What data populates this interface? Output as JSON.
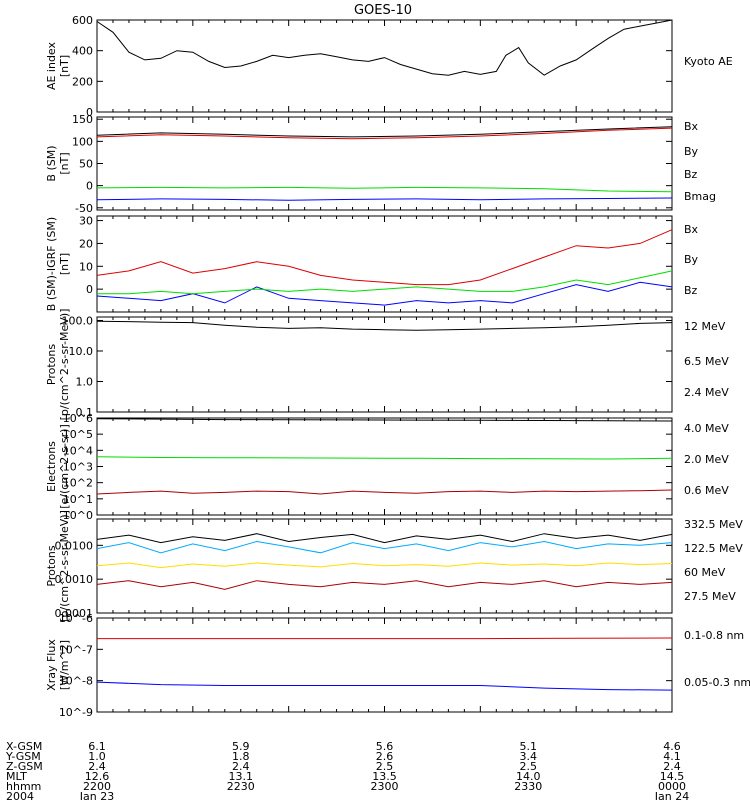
{
  "title": "GOES-10",
  "colors": {
    "black": "#000000",
    "blue": "#0000ff",
    "green": "#00dd00",
    "red": "#dd0000",
    "darkred": "#aa0000",
    "yellow": "#ffdd00",
    "cyan": "#00aaff"
  },
  "chart_data": [
    {
      "type": "line",
      "ylabel": [
        "AE index",
        "[nT]"
      ],
      "scale": "linear",
      "ylim": [
        0,
        600
      ],
      "yticks": [
        {
          "v": 0,
          "l": "0"
        },
        {
          "v": 200,
          "l": "200"
        },
        {
          "v": 400,
          "l": "400"
        },
        {
          "v": 600,
          "l": "600"
        }
      ],
      "series": [
        {
          "name": "Kyoto AE",
          "color": "#000000",
          "x": [
            0,
            5,
            10,
            15,
            20,
            25,
            30,
            35,
            40,
            45,
            50,
            55,
            60,
            65,
            70,
            75,
            80,
            85,
            90,
            95,
            100,
            105,
            110,
            115,
            120,
            125,
            128,
            132,
            135,
            140,
            145,
            150,
            155,
            160,
            165,
            170,
            175,
            180
          ],
          "y": [
            590,
            520,
            390,
            340,
            350,
            400,
            390,
            330,
            290,
            300,
            330,
            370,
            355,
            370,
            380,
            360,
            340,
            330,
            355,
            310,
            280,
            250,
            240,
            265,
            245,
            265,
            370,
            420,
            320,
            240,
            300,
            340,
            410,
            480,
            540,
            560,
            580,
            600
          ]
        }
      ]
    },
    {
      "type": "line",
      "ylabel": [
        "B (SM)",
        "[nT]"
      ],
      "scale": "linear",
      "ylim": [
        -55,
        155
      ],
      "yticks": [
        {
          "v": -50,
          "l": "-50"
        },
        {
          "v": 0,
          "l": "0"
        },
        {
          "v": 50,
          "l": "50"
        },
        {
          "v": 100,
          "l": "100"
        },
        {
          "v": 150,
          "l": "150"
        }
      ],
      "series": [
        {
          "name": "Bx",
          "color": "#0000ff",
          "x": [
            0,
            20,
            40,
            60,
            80,
            100,
            120,
            140,
            160,
            180
          ],
          "y": [
            -32,
            -30,
            -31,
            -33,
            -31,
            -30,
            -32,
            -30,
            -29,
            -28
          ]
        },
        {
          "name": "By",
          "color": "#00dd00",
          "x": [
            0,
            20,
            40,
            60,
            80,
            100,
            120,
            140,
            160,
            180
          ],
          "y": [
            -5,
            -4,
            -5,
            -4,
            -6,
            -4,
            -5,
            -7,
            -12,
            -14
          ]
        },
        {
          "name": "Bz",
          "color": "#dd0000",
          "x": [
            0,
            20,
            40,
            60,
            80,
            100,
            120,
            140,
            160,
            180
          ],
          "y": [
            110,
            115,
            112,
            108,
            106,
            108,
            112,
            118,
            125,
            130
          ]
        },
        {
          "name": "Bmag",
          "color": "#000000",
          "x": [
            0,
            20,
            40,
            60,
            80,
            100,
            120,
            140,
            160,
            180
          ],
          "y": [
            114,
            119,
            116,
            112,
            110,
            112,
            116,
            122,
            128,
            133
          ]
        }
      ]
    },
    {
      "type": "line",
      "ylabel": [
        "B (SM)-IGRF (SM)",
        "[nT]"
      ],
      "scale": "linear",
      "ylim": [
        -10,
        32
      ],
      "yticks": [
        {
          "v": 0,
          "l": "0"
        },
        {
          "v": 10,
          "l": "10"
        },
        {
          "v": 20,
          "l": "20"
        },
        {
          "v": 30,
          "l": "30"
        }
      ],
      "series": [
        {
          "name": "Bx",
          "color": "#0000ff",
          "x": [
            0,
            10,
            20,
            30,
            40,
            50,
            60,
            70,
            80,
            90,
            100,
            110,
            120,
            130,
            140,
            150,
            160,
            170,
            180
          ],
          "y": [
            -3,
            -4,
            -5,
            -2,
            -6,
            1,
            -4,
            -5,
            -6,
            -7,
            -5,
            -6,
            -5,
            -6,
            -2,
            2,
            -1,
            3,
            1
          ]
        },
        {
          "name": "By",
          "color": "#00dd00",
          "x": [
            0,
            10,
            20,
            30,
            40,
            50,
            60,
            70,
            80,
            90,
            100,
            110,
            120,
            130,
            140,
            150,
            160,
            170,
            180
          ],
          "y": [
            -2,
            -2,
            -1,
            -2,
            -1,
            0,
            -1,
            0,
            -1,
            0,
            1,
            0,
            -1,
            -1,
            1,
            4,
            2,
            5,
            8
          ]
        },
        {
          "name": "Bz",
          "color": "#dd0000",
          "x": [
            0,
            10,
            20,
            30,
            40,
            50,
            60,
            70,
            80,
            90,
            100,
            110,
            120,
            130,
            140,
            150,
            160,
            170,
            180
          ],
          "y": [
            6,
            8,
            12,
            7,
            9,
            12,
            10,
            6,
            4,
            3,
            2,
            2,
            4,
            9,
            14,
            19,
            18,
            20,
            26
          ]
        }
      ]
    },
    {
      "type": "line",
      "ylabel": [
        "Protons",
        "[p/(cm^2-s-sr-MeV)]"
      ],
      "scale": "log",
      "ylim": [
        0.1,
        130
      ],
      "yticks": [
        {
          "v": 0.1,
          "l": "0.1"
        },
        {
          "v": 1,
          "l": "1.0"
        },
        {
          "v": 10,
          "l": "10.0"
        },
        {
          "v": 100,
          "l": "100.0"
        }
      ],
      "series": [
        {
          "name": "12 MeV",
          "color": "#dd0000",
          "x": [],
          "y": []
        },
        {
          "name": "6.5 MeV",
          "color": "#00dd00",
          "x": [],
          "y": []
        },
        {
          "name": "2.4 MeV",
          "color": "#000000",
          "x": [
            0,
            10,
            20,
            30,
            40,
            50,
            60,
            70,
            80,
            90,
            100,
            110,
            120,
            130,
            140,
            150,
            160,
            170,
            180
          ],
          "y": [
            95,
            92,
            88,
            85,
            70,
            60,
            55,
            58,
            52,
            50,
            48,
            50,
            52,
            55,
            58,
            62,
            70,
            80,
            85
          ]
        }
      ]
    },
    {
      "type": "line",
      "ylabel": [
        "Electrons",
        "[e/(cm^2-s-sr)]"
      ],
      "scale": "log",
      "ylim": [
        1,
        1000000
      ],
      "yticks": [
        {
          "v": 1,
          "l": "10^0"
        },
        {
          "v": 10,
          "l": "10^1"
        },
        {
          "v": 100,
          "l": "10^2"
        },
        {
          "v": 1000,
          "l": "10^3"
        },
        {
          "v": 10000,
          "l": "10^4"
        },
        {
          "v": 100000,
          "l": "10^5"
        },
        {
          "v": 1000000,
          "l": "10^6"
        }
      ],
      "series": [
        {
          "name": "4.0 MeV",
          "color": "#aa0000",
          "x": [
            0,
            10,
            20,
            30,
            40,
            50,
            60,
            70,
            80,
            90,
            100,
            110,
            120,
            130,
            140,
            150,
            160,
            170,
            180
          ],
          "y": [
            20,
            25,
            30,
            22,
            25,
            30,
            28,
            20,
            30,
            25,
            22,
            28,
            30,
            25,
            30,
            28,
            30,
            32,
            35
          ]
        },
        {
          "name": "2.0 MeV",
          "color": "#00dd00",
          "x": [
            0,
            20,
            40,
            60,
            80,
            100,
            120,
            140,
            160,
            180
          ],
          "y": [
            4000,
            3600,
            3500,
            3400,
            3300,
            3200,
            3100,
            3000,
            2900,
            3200
          ]
        },
        {
          "name": "0.6 MeV",
          "color": "#000000",
          "x": [
            0,
            20,
            40,
            60,
            80,
            100,
            120,
            140,
            160,
            180
          ],
          "y": [
            900000,
            850000,
            800000,
            780000,
            760000,
            740000,
            720000,
            700000,
            680000,
            650000
          ]
        }
      ]
    },
    {
      "type": "line",
      "ylabel": [
        "Protons",
        "[p/(cm^2-s-sr-MeV)]"
      ],
      "scale": "log",
      "ylim": [
        0.0001,
        0.06
      ],
      "yticks": [
        {
          "v": 0.0001,
          "l": "0.0001"
        },
        {
          "v": 0.001,
          "l": "0.0010"
        },
        {
          "v": 0.01,
          "l": "0.0100"
        }
      ],
      "series": [
        {
          "name": "332.5 MeV",
          "color": "#aa0000",
          "x": [
            0,
            10,
            20,
            30,
            40,
            50,
            60,
            70,
            80,
            90,
            100,
            110,
            120,
            130,
            140,
            150,
            160,
            170,
            180
          ],
          "y": [
            0.0007,
            0.0009,
            0.0006,
            0.0008,
            0.0005,
            0.0009,
            0.0007,
            0.0006,
            0.0008,
            0.0007,
            0.0009,
            0.0006,
            0.0008,
            0.0007,
            0.0009,
            0.0006,
            0.0008,
            0.0007,
            0.0008
          ]
        },
        {
          "name": "122.5 MeV",
          "color": "#ffdd00",
          "x": [
            0,
            10,
            20,
            30,
            40,
            50,
            60,
            70,
            80,
            90,
            100,
            110,
            120,
            130,
            140,
            150,
            160,
            170,
            180
          ],
          "y": [
            0.0025,
            0.003,
            0.0022,
            0.0028,
            0.0024,
            0.003,
            0.0026,
            0.0023,
            0.0029,
            0.0025,
            0.0027,
            0.0024,
            0.003,
            0.0026,
            0.0028,
            0.0025,
            0.003,
            0.0027,
            0.0029
          ]
        },
        {
          "name": "60 MeV",
          "color": "#00aaff",
          "x": [
            0,
            10,
            20,
            30,
            40,
            50,
            60,
            70,
            80,
            90,
            100,
            110,
            120,
            130,
            140,
            150,
            160,
            170,
            180
          ],
          "y": [
            0.008,
            0.012,
            0.006,
            0.011,
            0.007,
            0.013,
            0.009,
            0.006,
            0.012,
            0.008,
            0.011,
            0.007,
            0.012,
            0.009,
            0.013,
            0.008,
            0.011,
            0.01,
            0.012
          ]
        },
        {
          "name": "27.5 MeV",
          "color": "#000000",
          "x": [
            0,
            10,
            20,
            30,
            40,
            50,
            60,
            70,
            80,
            90,
            100,
            110,
            120,
            130,
            140,
            150,
            160,
            170,
            180
          ],
          "y": [
            0.015,
            0.02,
            0.012,
            0.018,
            0.014,
            0.022,
            0.013,
            0.017,
            0.021,
            0.012,
            0.019,
            0.015,
            0.02,
            0.013,
            0.022,
            0.016,
            0.02,
            0.014,
            0.021
          ]
        }
      ]
    },
    {
      "type": "line",
      "ylabel": [
        "Xray Flux",
        "[W/m^2]"
      ],
      "scale": "log",
      "ylim": [
        1e-09,
        1e-06
      ],
      "yticks": [
        {
          "v": 1e-09,
          "l": "10^-9"
        },
        {
          "v": 1e-08,
          "l": "10^-8"
        },
        {
          "v": 1e-07,
          "l": "10^-7"
        },
        {
          "v": 1e-06,
          "l": "10^-6"
        }
      ],
      "series": [
        {
          "name": "0.1-0.8 nm",
          "color": "#dd0000",
          "x": [
            0,
            60,
            120,
            150,
            180
          ],
          "y": [
            2.2e-07,
            2.2e-07,
            2.2e-07,
            2.25e-07,
            2.3e-07
          ]
        },
        {
          "name": "0.05-0.3 nm",
          "color": "#0000ff",
          "x": [
            0,
            20,
            40,
            60,
            80,
            100,
            120,
            140,
            160,
            180
          ],
          "y": [
            9e-09,
            7.5e-09,
            7e-09,
            7e-09,
            7e-09,
            7e-09,
            7e-09,
            5.8e-09,
            5.2e-09,
            5e-09
          ]
        }
      ]
    }
  ],
  "footer": {
    "row_labels": [
      "X-GSM",
      "Y-GSM",
      "Z-GSM",
      "MLT",
      "hhmm",
      "2004"
    ],
    "columns": [
      {
        "x": 0,
        "values": [
          "6.1",
          "1.0",
          "2.4",
          "12.6",
          "2200",
          "Jan 23"
        ]
      },
      {
        "x": 30,
        "values": [
          "5.9",
          "1.8",
          "2.4",
          "13.1",
          "2230",
          ""
        ]
      },
      {
        "x": 60,
        "values": [
          "5.6",
          "2.6",
          "2.5",
          "13.5",
          "2300",
          ""
        ]
      },
      {
        "x": 90,
        "values": [
          "5.1",
          "3.4",
          "2.5",
          "14.0",
          "2330",
          ""
        ]
      },
      {
        "x": 120,
        "values": [
          "4.6",
          "4.1",
          "2.4",
          "14.5",
          "0000",
          "Jan 24"
        ]
      }
    ]
  }
}
